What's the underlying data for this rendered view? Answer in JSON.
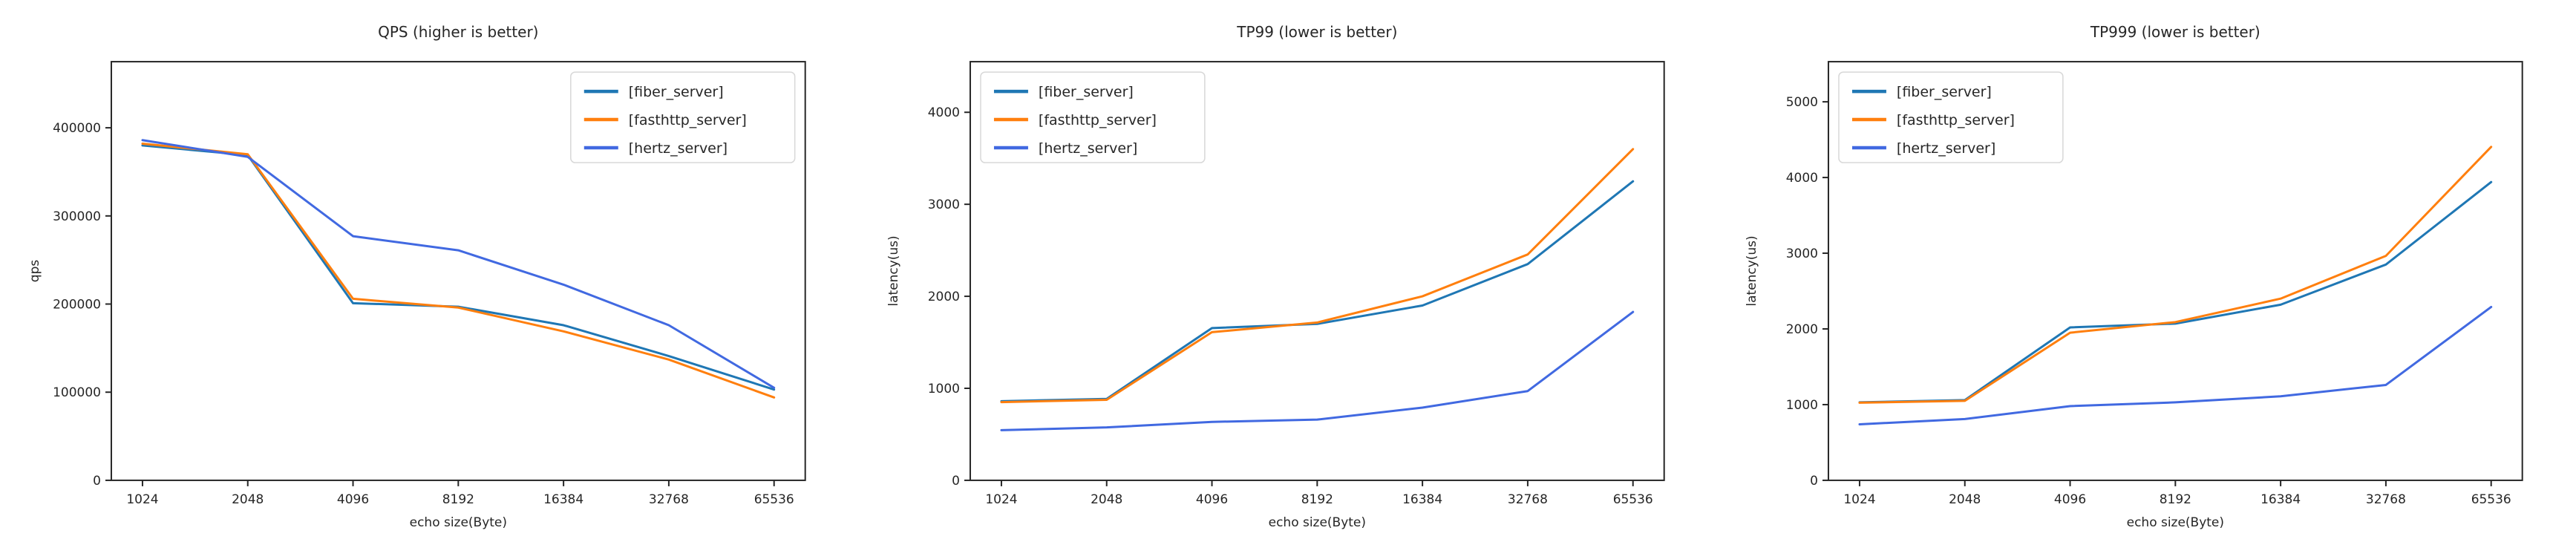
{
  "page": {
    "background": "#ffffff"
  },
  "colors": {
    "fiber_server": "#1f77b4",
    "fasthttp_server": "#ff7f0e",
    "hertz_server": "#4169e1",
    "axis": "#262626",
    "legend_border": "#d8d8d8",
    "legend_background": "#ffffff"
  },
  "chart_data": [
    {
      "type": "line",
      "title": "QPS (higher is better)",
      "xlabel": "echo size(Byte)",
      "ylabel": "qps",
      "categories": [
        "1024",
        "2048",
        "4096",
        "8192",
        "16384",
        "32768",
        "65536"
      ],
      "ylim": [
        0,
        475000
      ],
      "yticks": [
        0,
        100000,
        200000,
        300000,
        400000
      ],
      "grid": false,
      "legend_position": "upper right",
      "series": [
        {
          "name": "[fiber_server]",
          "color": "#1f77b4",
          "values": [
            380000,
            369000,
            201000,
            197000,
            176000,
            141000,
            103000
          ]
        },
        {
          "name": "[fasthttp_server]",
          "color": "#ff7f0e",
          "values": [
            382000,
            370000,
            206000,
            196000,
            169000,
            137000,
            94000
          ]
        },
        {
          "name": "[hertz_server]",
          "color": "#4169e1",
          "values": [
            386000,
            367000,
            277000,
            261000,
            222000,
            176000,
            105000
          ]
        }
      ]
    },
    {
      "type": "line",
      "title": "TP99 (lower is better)",
      "xlabel": "echo size(Byte)",
      "ylabel": "latency(us)",
      "categories": [
        "1024",
        "2048",
        "4096",
        "8192",
        "16384",
        "32768",
        "65536"
      ],
      "ylim": [
        0,
        4550
      ],
      "yticks": [
        0,
        1000,
        2000,
        3000,
        4000
      ],
      "grid": false,
      "legend_position": "upper left",
      "series": [
        {
          "name": "[fiber_server]",
          "color": "#1f77b4",
          "values": [
            860,
            885,
            1655,
            1700,
            1900,
            2350,
            3250
          ]
        },
        {
          "name": "[fasthttp_server]",
          "color": "#ff7f0e",
          "values": [
            850,
            875,
            1610,
            1715,
            2000,
            2455,
            3600
          ]
        },
        {
          "name": "[hertz_server]",
          "color": "#4169e1",
          "values": [
            545,
            575,
            635,
            660,
            790,
            970,
            1830
          ]
        }
      ]
    },
    {
      "type": "line",
      "title": "TP999 (lower is better)",
      "xlabel": "echo size(Byte)",
      "ylabel": "latency(us)",
      "categories": [
        "1024",
        "2048",
        "4096",
        "8192",
        "16384",
        "32768",
        "65536"
      ],
      "ylim": [
        0,
        5530
      ],
      "yticks": [
        0,
        1000,
        2000,
        3000,
        4000,
        5000
      ],
      "grid": false,
      "legend_position": "upper left",
      "series": [
        {
          "name": "[fiber_server]",
          "color": "#1f77b4",
          "values": [
            1030,
            1060,
            2020,
            2070,
            2320,
            2850,
            3940
          ]
        },
        {
          "name": "[fasthttp_server]",
          "color": "#ff7f0e",
          "values": [
            1025,
            1050,
            1950,
            2090,
            2400,
            2965,
            4405
          ]
        },
        {
          "name": "[hertz_server]",
          "color": "#4169e1",
          "values": [
            740,
            810,
            980,
            1030,
            1110,
            1260,
            2290
          ]
        }
      ]
    }
  ]
}
